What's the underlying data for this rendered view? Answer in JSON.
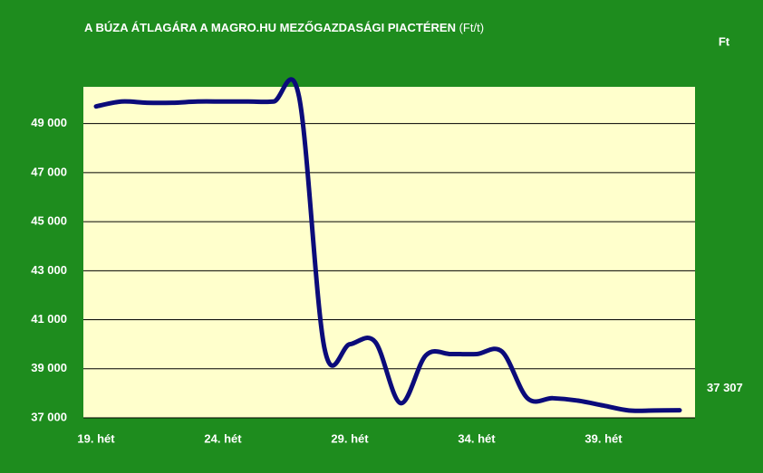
{
  "chart_data": {
    "type": "line",
    "title": "A BÚZA ÁTLAGÁRA A MAGRO.HU MEZŐGAZDASÁGI PIACTÉREN",
    "subtitle": "(Ft/t)",
    "y_unit": "Ft",
    "categories": [
      "19. hét",
      null,
      null,
      null,
      null,
      "24. hét",
      null,
      null,
      null,
      null,
      "29. hét",
      null,
      null,
      null,
      null,
      "34. hét",
      null,
      null,
      null,
      null,
      "39. hét",
      null,
      null,
      null
    ],
    "series": [
      {
        "color": "#0b0b7a",
        "values": [
          49700,
          49900,
          49850,
          49850,
          49900,
          49900,
          49900,
          49900,
          50100,
          39850,
          40000,
          40100,
          37600,
          39550,
          39600,
          39600,
          39700,
          37800,
          37800,
          37700,
          37500,
          37300,
          37300,
          37307
        ],
        "value_labels": [
          null,
          null,
          null,
          null,
          null,
          null,
          null,
          null,
          null,
          null,
          null,
          null,
          null,
          null,
          null,
          null,
          null,
          null,
          null,
          null,
          null,
          null,
          null,
          "37 307"
        ]
      }
    ],
    "ylim": [
      37000,
      50500
    ],
    "yticks": [
      {
        "value": 37000,
        "label": "37 000"
      },
      {
        "value": 39000,
        "label": "39 000"
      },
      {
        "value": 41000,
        "label": "41 000"
      },
      {
        "value": 43000,
        "label": "43 000"
      },
      {
        "value": 45000,
        "label": "45 000"
      },
      {
        "value": 47000,
        "label": "47 000"
      },
      {
        "value": 49000,
        "label": "49 000"
      }
    ],
    "grid": true
  }
}
